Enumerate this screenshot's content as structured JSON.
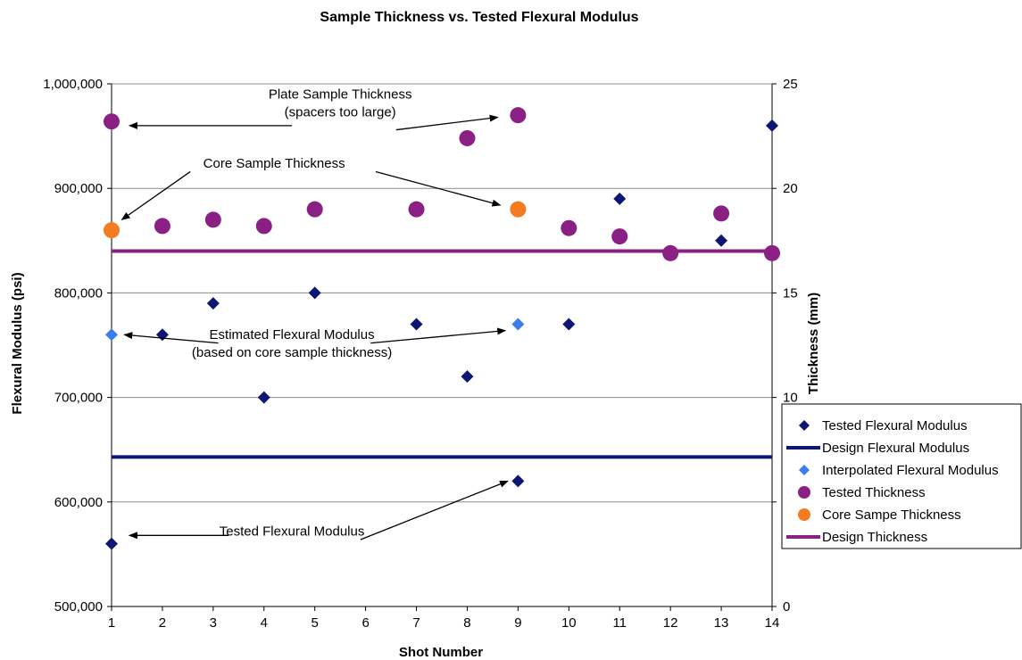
{
  "chart_data": {
    "type": "scatter",
    "title": "Sample Thickness vs. Tested Flexural  Modulus",
    "xlabel": "Shot Number",
    "ylabel": "Flexural Modulus (psi)",
    "y2label": "Thickness (mm)",
    "x_ticks": [
      "1",
      "2",
      "3",
      "4",
      "5",
      "6",
      "7",
      "8",
      "9",
      "10",
      "11",
      "12",
      "13",
      "14"
    ],
    "y_ticks": [
      "500,000",
      "600,000",
      "700,000",
      "800,000",
      "900,000",
      "1,000,000"
    ],
    "y2_ticks": [
      "0",
      "5",
      "10",
      "15",
      "20",
      "25"
    ],
    "xlim": [
      1,
      14
    ],
    "ylim": [
      500000,
      1000000
    ],
    "y2lim": [
      0,
      25
    ],
    "grid": true,
    "legend_position": "right",
    "series": [
      {
        "name": "Tested Flexural Modulus",
        "axis": "left",
        "marker": "diamond",
        "color": "#0d1673",
        "points": [
          [
            1,
            560000
          ],
          [
            2,
            760000
          ],
          [
            3,
            790000
          ],
          [
            4,
            700000
          ],
          [
            5,
            800000
          ],
          [
            7,
            770000
          ],
          [
            8,
            720000
          ],
          [
            9,
            620000
          ],
          [
            10,
            770000
          ],
          [
            11,
            890000
          ],
          [
            12,
            840000
          ],
          [
            13,
            850000
          ],
          [
            14,
            960000
          ]
        ]
      },
      {
        "name": "Design Flexural Modulus",
        "axis": "left",
        "marker": "line",
        "color": "#0d1673",
        "points": [
          [
            1,
            643000
          ],
          [
            14,
            643000
          ]
        ]
      },
      {
        "name": "Interpolated Flexural Modulus",
        "axis": "left",
        "marker": "diamond",
        "color": "#3b7cf0",
        "points": [
          [
            1,
            760000
          ],
          [
            9,
            770000
          ]
        ]
      },
      {
        "name": "Tested Thickness",
        "axis": "right",
        "marker": "circle",
        "color": "#8a1f84",
        "points": [
          [
            1,
            23.2
          ],
          [
            2,
            18.2
          ],
          [
            3,
            18.5
          ],
          [
            4,
            18.2
          ],
          [
            5,
            19.0
          ],
          [
            7,
            19.0
          ],
          [
            8,
            22.4
          ],
          [
            9,
            23.5
          ],
          [
            10,
            18.1
          ],
          [
            11,
            17.7
          ],
          [
            12,
            16.9
          ],
          [
            13,
            18.8
          ],
          [
            14,
            16.9
          ]
        ]
      },
      {
        "name": "Core Sampe Thickness",
        "axis": "right",
        "marker": "circle",
        "color": "#f47b20",
        "points": [
          [
            1,
            18.0
          ],
          [
            9,
            19.0
          ]
        ]
      },
      {
        "name": "Design Thickness",
        "axis": "right",
        "marker": "line",
        "color": "#8a1f84",
        "points": [
          [
            1,
            17.0
          ],
          [
            14,
            17.0
          ]
        ]
      }
    ],
    "annotations": [
      {
        "id": "ann-plate",
        "lines": [
          "Plate Sample Thickness",
          "(spacers too large)"
        ],
        "anchor": [
          5.5,
          24.3
        ],
        "axis": "right",
        "arrows": [
          {
            "from": [
              4.55,
              23.0
            ],
            "to": [
              1.35,
              23.0
            ]
          },
          {
            "from": [
              6.6,
              22.8
            ],
            "to": [
              8.6,
              23.4
            ]
          }
        ]
      },
      {
        "id": "ann-core",
        "lines": [
          "Core Sample Thickness"
        ],
        "anchor": [
          4.2,
          21.0
        ],
        "axis": "right",
        "arrows": [
          {
            "from": [
              2.55,
              20.8
            ],
            "to": [
              1.2,
              18.5
            ]
          },
          {
            "from": [
              6.2,
              20.8
            ],
            "to": [
              8.65,
              19.2
            ]
          }
        ]
      },
      {
        "id": "ann-est",
        "lines": [
          "Estimated Flexural Modulus",
          "(based on core sample thickness)"
        ],
        "anchor": [
          4.55,
          12.8
        ],
        "axis": "right",
        "arrows": [
          {
            "from": [
              3.1,
              12.6
            ],
            "to": [
              1.25,
              13.0
            ]
          },
          {
            "from": [
              6.1,
              12.6
            ],
            "to": [
              8.75,
              13.2
            ]
          }
        ]
      },
      {
        "id": "ann-tested",
        "lines": [
          "Tested Flexural Modulus"
        ],
        "anchor": [
          4.55,
          3.4
        ],
        "axis": "right",
        "arrows": [
          {
            "from": [
              3.3,
              3.4
            ],
            "to": [
              1.35,
              3.4
            ]
          },
          {
            "from": [
              5.9,
              3.2
            ],
            "to": [
              8.8,
              6.0
            ]
          }
        ]
      }
    ]
  }
}
